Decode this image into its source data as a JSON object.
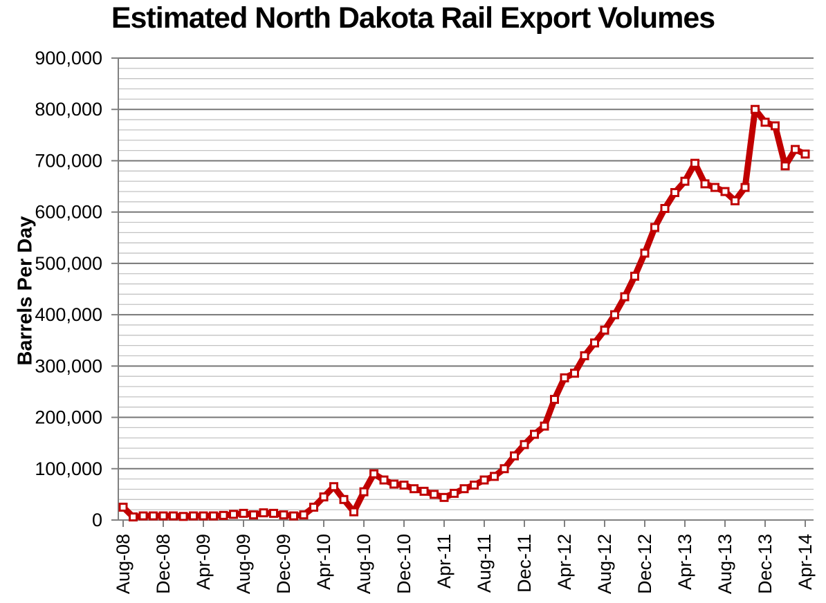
{
  "page": {
    "background": "#FFFFFF"
  },
  "chart_data": {
    "type": "line",
    "title": "Estimated North Dakota Rail Export Volumes",
    "ylabel": "Barrels Per Day",
    "xlabel": "",
    "legend_position": "none",
    "grid": {
      "major": true,
      "minor": true
    },
    "ylim": [
      0,
      900000
    ],
    "y_major_step": 100000,
    "y_minor_step": 20000,
    "y_tick_labels": [
      "0",
      "100,000",
      "200,000",
      "300,000",
      "400,000",
      "500,000",
      "600,000",
      "700,000",
      "800,000",
      "900,000"
    ],
    "x_tick_every_n_months": 4,
    "x_tick_labels": [
      "Aug-08",
      "Dec-08",
      "Apr-09",
      "Aug-09",
      "Dec-09",
      "Apr-10",
      "Aug-10",
      "Dec-10",
      "Apr-11",
      "Aug-11",
      "Dec-11",
      "Apr-12",
      "Aug-12",
      "Dec-12",
      "Apr-13",
      "Aug-13",
      "Dec-13",
      "Apr-14"
    ],
    "categories": [
      "Aug-08",
      "Sep-08",
      "Oct-08",
      "Nov-08",
      "Dec-08",
      "Jan-09",
      "Feb-09",
      "Mar-09",
      "Apr-09",
      "May-09",
      "Jun-09",
      "Jul-09",
      "Aug-09",
      "Sep-09",
      "Oct-09",
      "Nov-09",
      "Dec-09",
      "Jan-10",
      "Feb-10",
      "Mar-10",
      "Apr-10",
      "May-10",
      "Jun-10",
      "Jul-10",
      "Aug-10",
      "Sep-10",
      "Oct-10",
      "Nov-10",
      "Dec-10",
      "Jan-11",
      "Feb-11",
      "Mar-11",
      "Apr-11",
      "May-11",
      "Jun-11",
      "Jul-11",
      "Aug-11",
      "Sep-11",
      "Oct-11",
      "Nov-11",
      "Dec-11",
      "Jan-12",
      "Feb-12",
      "Mar-12",
      "Apr-12",
      "May-12",
      "Jun-12",
      "Jul-12",
      "Aug-12",
      "Sep-12",
      "Oct-12",
      "Nov-12",
      "Dec-12",
      "Jan-13",
      "Feb-13",
      "Mar-13",
      "Apr-13",
      "May-13",
      "Jun-13",
      "Jul-13",
      "Aug-13",
      "Sep-13",
      "Oct-13",
      "Nov-13",
      "Dec-13",
      "Jan-14",
      "Feb-14",
      "Mar-14",
      "Apr-14"
    ],
    "series": [
      {
        "name": "Estimated North Dakota rail export volumes",
        "color": "#C00000",
        "line_width": 9,
        "marker": "square",
        "marker_fill": "#FFFFFF",
        "marker_border": "#C00000",
        "values": [
          25000,
          6000,
          8000,
          8000,
          8000,
          8000,
          7000,
          8000,
          8000,
          8000,
          9000,
          11000,
          13000,
          10000,
          14000,
          13000,
          10000,
          8000,
          10000,
          25000,
          45000,
          65000,
          40000,
          16000,
          55000,
          90000,
          78000,
          70000,
          68000,
          61000,
          56000,
          50000,
          44000,
          52000,
          61000,
          68000,
          78000,
          85000,
          100000,
          125000,
          147000,
          167000,
          183000,
          235000,
          277000,
          286000,
          320000,
          345000,
          370000,
          400000,
          435000,
          475000,
          520000,
          570000,
          607000,
          638000,
          660000,
          695000,
          655000,
          648000,
          640000,
          622000,
          648000,
          800000,
          775000,
          768000,
          690000,
          722000,
          713000
        ]
      }
    ],
    "colors": {
      "major_gridline": "#767676",
      "minor_gridline": "#C2C2C2",
      "axis_line": "#808080",
      "tick_mark": "#808080",
      "title_text": "#000000",
      "tick_text": "#000000"
    }
  }
}
